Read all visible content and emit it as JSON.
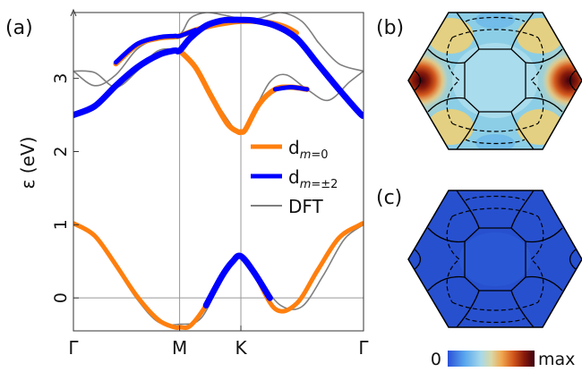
{
  "chart_data": [
    {
      "panel": "(a)",
      "type": "line",
      "ylabel": "ε (eV)",
      "ylim": [
        -0.45,
        3.9
      ],
      "yticks": [
        "0",
        "1",
        "2",
        "3"
      ],
      "xticks": [
        "Γ",
        "M",
        "K",
        "Γ"
      ],
      "k_points": [
        0,
        1,
        1.577,
        2.732
      ],
      "legend": [
        "d_{m=0}",
        "d_{m=±2}",
        "DFT"
      ],
      "series": [
        {
          "name": "d_{m=0}",
          "color": "#ff7f0e",
          "role": "lower-band",
          "x": [
            0,
            0.2,
            0.4,
            0.6,
            0.8,
            0.95,
            1.0,
            1.1,
            1.25,
            1.4,
            1.5,
            1.577,
            1.7,
            1.9,
            2.1,
            2.3,
            2.5,
            2.7,
            2.732
          ],
          "y": [
            1.02,
            0.85,
            0.45,
            0.02,
            -0.3,
            -0.4,
            -0.4,
            -0.38,
            -0.1,
            0.3,
            0.5,
            0.57,
            0.35,
            -0.15,
            -0.08,
            0.38,
            0.82,
            1.0,
            1.02
          ]
        },
        {
          "name": "d_{m=±2}",
          "color": "#0000ff",
          "role": "lower-band-bulge",
          "x": [
            1.25,
            1.4,
            1.5,
            1.577,
            1.7,
            1.85
          ],
          "y": [
            -0.1,
            0.3,
            0.5,
            0.57,
            0.35,
            0.0
          ]
        },
        {
          "name": "d_{m=0}",
          "color": "#ff7f0e",
          "role": "upper-band-1",
          "x": [
            0.4,
            0.6,
            0.8,
            0.95,
            1.0,
            1.15,
            1.3,
            1.45,
            1.577,
            1.7,
            1.85,
            2.0,
            2.1
          ],
          "y": [
            3.2,
            3.46,
            3.55,
            3.57,
            3.58,
            3.66,
            3.72,
            3.76,
            3.78,
            3.78,
            3.76,
            3.7,
            3.62
          ]
        },
        {
          "name": "d_{m=0}",
          "color": "#ff7f0e",
          "role": "upper-band-2",
          "x": [
            1.0,
            1.15,
            1.3,
            1.45,
            1.55,
            1.577,
            1.62,
            1.75,
            1.9,
            2.05,
            2.2
          ],
          "y": [
            3.38,
            3.15,
            2.75,
            2.38,
            2.27,
            2.27,
            2.3,
            2.65,
            2.85,
            2.88,
            2.85
          ]
        },
        {
          "name": "d_{m=±2}",
          "color": "#0000ff",
          "role": "upper-band-main",
          "x": [
            0,
            0.2,
            0.4,
            0.6,
            0.8,
            0.95,
            1.0,
            1.1,
            1.25,
            1.4,
            1.5,
            1.577,
            1.7,
            1.9,
            2.1,
            2.3,
            2.5,
            2.7,
            2.732
          ],
          "y": [
            2.5,
            2.62,
            2.9,
            3.15,
            3.32,
            3.38,
            3.38,
            3.55,
            3.72,
            3.79,
            3.8,
            3.8,
            3.79,
            3.72,
            3.55,
            3.2,
            2.85,
            2.52,
            2.5
          ]
        },
        {
          "name": "d_{m=±2}",
          "color": "#0000ff",
          "role": "upper-band-alt",
          "x": [
            0.4,
            0.6,
            0.8,
            0.95,
            1.0,
            1.15
          ],
          "y": [
            3.22,
            3.47,
            3.56,
            3.58,
            3.58,
            3.66
          ]
        },
        {
          "name": "d_{m=±2}",
          "color": "#0000ff",
          "role": "upper-band-alt2",
          "x": [
            1.9,
            2.05,
            2.2
          ],
          "y": [
            2.85,
            2.88,
            2.85
          ]
        },
        {
          "name": "DFT",
          "color": "#7f7f7f",
          "role": "dft-1",
          "x": [
            0,
            0.2,
            0.4,
            0.6,
            0.8,
            1.0,
            1.2,
            1.4,
            1.577,
            1.75,
            1.95,
            2.15,
            2.35,
            2.55,
            2.732
          ],
          "y": [
            1.0,
            0.83,
            0.42,
            -0.02,
            -0.33,
            -0.36,
            -0.28,
            0.25,
            0.55,
            0.25,
            -0.1,
            -0.12,
            0.3,
            0.8,
            1.0
          ]
        },
        {
          "name": "DFT",
          "color": "#7f7f7f",
          "role": "dft-2",
          "x": [
            0,
            0.2,
            0.4,
            0.6,
            0.8,
            1.0,
            1.2,
            1.4,
            1.577,
            1.7,
            1.85,
            2.0,
            2.2,
            2.4,
            2.6,
            2.732
          ],
          "y": [
            3.1,
            3.08,
            2.88,
            3.1,
            3.38,
            3.35,
            3.05,
            2.55,
            2.25,
            2.55,
            2.95,
            3.05,
            2.85,
            2.7,
            2.95,
            3.1
          ]
        },
        {
          "name": "DFT",
          "color": "#7f7f7f",
          "role": "dft-3",
          "x": [
            0,
            0.2,
            0.4,
            0.6,
            0.8,
            1.0,
            1.1,
            1.25,
            1.4,
            1.577,
            1.75,
            1.95,
            2.15,
            2.3
          ],
          "y": [
            3.1,
            2.9,
            3.05,
            3.4,
            3.55,
            3.6,
            3.82,
            3.9,
            3.87,
            3.82,
            3.82,
            3.9,
            3.78,
            3.5
          ]
        },
        {
          "name": "DFT",
          "color": "#7f7f7f",
          "role": "dft-4",
          "x": [
            2.3,
            2.5,
            2.732
          ],
          "y": [
            3.5,
            3.2,
            3.1
          ]
        }
      ]
    },
    {
      "panel": "(b)",
      "type": "heatmap",
      "colorbar": {
        "min_label": "0",
        "max_label": "max",
        "colors": [
          "#2a50d8",
          "#5aa8ee",
          "#a6d8ea",
          "#d8d8a8",
          "#f0a850",
          "#d45a1e",
          "#8a1a0a",
          "#3a0010"
        ]
      },
      "fill": "#8ccee6",
      "hotspot_color": "#7a1200"
    },
    {
      "panel": "(c)",
      "type": "heatmap",
      "fill": "#2750cf"
    }
  ]
}
